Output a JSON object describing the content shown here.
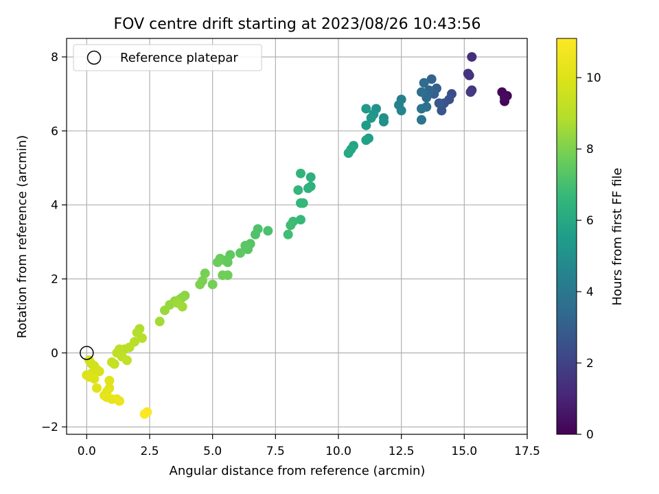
{
  "chart_data": {
    "type": "scatter",
    "title": "FOV centre drift starting at 2023/08/26 10:43:56",
    "xlabel": "Angular distance from reference (arcmin)",
    "ylabel": "Rotation from reference (arcmin)",
    "xlim": [
      -0.8,
      17.5
    ],
    "ylim": [
      -2.2,
      8.5
    ],
    "xticks": [
      0.0,
      2.5,
      5.0,
      7.5,
      10.0,
      12.5,
      15.0,
      17.5
    ],
    "xtick_labels": [
      "0.0",
      "2.5",
      "5.0",
      "7.5",
      "10.0",
      "12.5",
      "15.0",
      "17.5"
    ],
    "yticks": [
      -2,
      0,
      2,
      4,
      6,
      8
    ],
    "ytick_labels": [
      "−2",
      "0",
      "2",
      "4",
      "6",
      "8"
    ],
    "grid": true,
    "legend": {
      "placement": "top-left",
      "entries": [
        "Reference platepar"
      ]
    },
    "reference_point": {
      "label": "Reference platepar",
      "x": 0.0,
      "y": 0.0
    },
    "colorbar": {
      "label": "Hours from first FF file",
      "range": [
        0,
        11.1
      ],
      "colormap": "viridis",
      "ticks": [
        0,
        2,
        4,
        6,
        8,
        10
      ],
      "tick_labels": [
        "0",
        "2",
        "4",
        "6",
        "8",
        "10"
      ]
    },
    "series": [
      {
        "name": "drift",
        "points": [
          [
            16.6,
            6.8,
            0.1
          ],
          [
            16.7,
            6.95,
            0.1
          ],
          [
            16.5,
            7.05,
            0.2
          ],
          [
            16.6,
            6.9,
            0.3
          ],
          [
            15.3,
            8.0,
            1.3
          ],
          [
            15.2,
            7.5,
            1.4
          ],
          [
            15.15,
            7.55,
            1.5
          ],
          [
            15.3,
            7.1,
            1.6
          ],
          [
            15.25,
            7.05,
            1.7
          ],
          [
            14.5,
            7.0,
            2.4
          ],
          [
            14.4,
            6.85,
            2.5
          ],
          [
            14.2,
            6.75,
            2.6
          ],
          [
            14.1,
            6.55,
            2.7
          ],
          [
            14.0,
            6.75,
            2.8
          ],
          [
            13.9,
            7.15,
            3.0
          ],
          [
            13.8,
            7.0,
            3.1
          ],
          [
            13.7,
            7.4,
            3.2
          ],
          [
            13.6,
            7.1,
            3.3
          ],
          [
            13.5,
            6.9,
            3.4
          ],
          [
            13.4,
            7.3,
            3.5
          ],
          [
            13.3,
            7.05,
            3.6
          ],
          [
            13.5,
            6.65,
            3.7
          ],
          [
            13.3,
            6.6,
            3.8
          ],
          [
            13.3,
            6.3,
            3.9
          ],
          [
            12.5,
            6.85,
            4.3
          ],
          [
            12.4,
            6.7,
            4.4
          ],
          [
            12.5,
            6.55,
            4.5
          ],
          [
            11.8,
            6.35,
            4.9
          ],
          [
            11.8,
            6.25,
            5.0
          ],
          [
            11.5,
            6.6,
            5.1
          ],
          [
            11.4,
            6.45,
            5.2
          ],
          [
            11.3,
            6.35,
            5.3
          ],
          [
            11.1,
            6.6,
            5.4
          ],
          [
            11.1,
            6.15,
            5.5
          ],
          [
            11.2,
            5.8,
            5.6
          ],
          [
            11.1,
            5.75,
            5.7
          ],
          [
            10.6,
            5.6,
            5.8
          ],
          [
            10.5,
            5.5,
            5.9
          ],
          [
            10.4,
            5.4,
            6.0
          ],
          [
            8.9,
            4.75,
            6.3
          ],
          [
            8.9,
            4.5,
            6.35
          ],
          [
            8.8,
            4.45,
            6.4
          ],
          [
            8.5,
            4.85,
            6.5
          ],
          [
            8.4,
            4.4,
            6.55
          ],
          [
            8.5,
            4.05,
            6.6
          ],
          [
            8.6,
            4.05,
            6.65
          ],
          [
            8.5,
            3.6,
            6.7
          ],
          [
            8.2,
            3.55,
            6.8
          ],
          [
            8.1,
            3.45,
            6.85
          ],
          [
            8.0,
            3.2,
            6.9
          ],
          [
            7.2,
            3.3,
            7.1
          ],
          [
            6.8,
            3.35,
            7.15
          ],
          [
            6.7,
            3.2,
            7.2
          ],
          [
            6.5,
            2.95,
            7.3
          ],
          [
            6.4,
            2.8,
            7.35
          ],
          [
            6.3,
            2.9,
            7.4
          ],
          [
            6.1,
            2.7,
            7.45
          ],
          [
            5.7,
            2.65,
            7.5
          ],
          [
            5.6,
            2.45,
            7.55
          ],
          [
            5.5,
            2.5,
            7.6
          ],
          [
            5.3,
            2.55,
            7.65
          ],
          [
            5.2,
            2.45,
            7.7
          ],
          [
            5.6,
            2.1,
            7.75
          ],
          [
            5.4,
            2.1,
            7.8
          ],
          [
            5.0,
            1.85,
            7.85
          ],
          [
            4.7,
            2.15,
            7.9
          ],
          [
            4.6,
            1.95,
            7.95
          ],
          [
            4.5,
            1.85,
            8.0
          ],
          [
            3.9,
            1.55,
            8.2
          ],
          [
            3.8,
            1.5,
            8.25
          ],
          [
            3.7,
            1.45,
            8.3
          ],
          [
            3.5,
            1.4,
            8.35
          ],
          [
            3.3,
            1.3,
            8.4
          ],
          [
            3.1,
            1.15,
            8.45
          ],
          [
            3.6,
            1.35,
            8.5
          ],
          [
            3.8,
            1.25,
            8.55
          ],
          [
            2.9,
            0.85,
            8.6
          ],
          [
            2.1,
            0.65,
            8.8
          ],
          [
            2.0,
            0.55,
            8.85
          ],
          [
            2.2,
            0.4,
            8.9
          ],
          [
            1.9,
            0.3,
            8.95
          ],
          [
            1.7,
            0.15,
            9.0
          ],
          [
            1.5,
            0.1,
            9.05
          ],
          [
            1.3,
            0.1,
            9.1
          ],
          [
            1.2,
            0.0,
            9.15
          ],
          [
            1.4,
            -0.1,
            9.2
          ],
          [
            1.6,
            -0.2,
            9.25
          ],
          [
            1.1,
            -0.3,
            9.3
          ],
          [
            1.0,
            -0.25,
            9.35
          ],
          [
            0.3,
            -0.35,
            9.6
          ],
          [
            0.2,
            -0.3,
            9.65
          ],
          [
            0.1,
            -0.2,
            9.7
          ],
          [
            0.4,
            -0.45,
            9.75
          ],
          [
            0.5,
            -0.5,
            9.8
          ],
          [
            0.2,
            -0.55,
            9.85
          ],
          [
            0.0,
            -0.6,
            9.9
          ],
          [
            0.1,
            -0.65,
            9.95
          ],
          [
            0.3,
            -0.7,
            10.0
          ],
          [
            0.4,
            -0.95,
            10.05
          ],
          [
            0.9,
            -0.75,
            10.1
          ],
          [
            0.9,
            -0.95,
            10.15
          ],
          [
            0.8,
            -1.05,
            10.2
          ],
          [
            0.7,
            -1.15,
            10.25
          ],
          [
            0.8,
            -1.2,
            10.3
          ],
          [
            1.0,
            -1.25,
            10.35
          ],
          [
            1.2,
            -1.25,
            10.4
          ],
          [
            1.3,
            -1.3,
            10.45
          ],
          [
            2.4,
            -1.6,
            11.0
          ],
          [
            2.3,
            -1.65,
            11.05
          ]
        ]
      }
    ]
  }
}
